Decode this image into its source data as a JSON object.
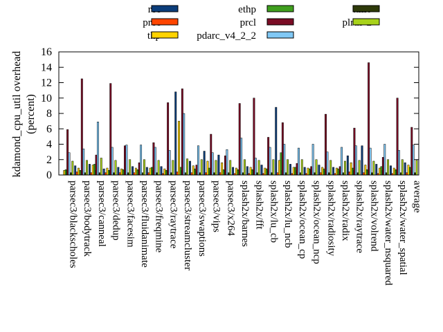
{
  "chart_data": {
    "type": "bar",
    "title": "",
    "xlabel": "",
    "ylabel": "kdamond_cpu_util overhead",
    "ylabel_unit": "(percent)",
    "ylim": [
      0,
      16
    ],
    "yticks": [
      0,
      2,
      4,
      6,
      8,
      10,
      12,
      14,
      16
    ],
    "grid": false,
    "legend_position": "top",
    "categories": [
      "parsec3/blackscholes",
      "parsec3/bodytrack",
      "parsec3/canneal",
      "parsec3/dedup",
      "parsec3/facesim",
      "parsec3/fluidanimate",
      "parsec3/freqmine",
      "parsec3/raytrace",
      "parsec3/streamcluster",
      "parsec3/swaptions",
      "parsec3/vips",
      "parsec3/x264",
      "splash2x/barnes",
      "splash2x/fft",
      "splash2x/lu_cb",
      "splash2x/lu_ncb",
      "splash2x/ocean_cp",
      "splash2x/ocean_ncp",
      "splash2x/radiosity",
      "splash2x/radix",
      "splash2x/raytrace",
      "splash2x/volrend",
      "splash2x/water_nsquared",
      "splash2x/water_spatial",
      "average"
    ],
    "series": [
      {
        "name": "rec",
        "color": "#0b3d7a",
        "values": [
          0.0,
          1.2,
          1.4,
          0.8,
          1.0,
          1.1,
          1.0,
          1.1,
          10.8,
          1.8,
          3.1,
          2.6,
          1.0,
          1.1,
          1.3,
          8.8,
          1.4,
          1.0,
          1.3,
          1.0,
          2.5,
          3.8,
          1.4,
          1.2,
          1.6
        ]
      },
      {
        "name": "prec",
        "color": "#ff4500",
        "values": [
          0.0,
          0.4,
          0.3,
          0.3,
          0.3,
          0.3,
          0.3,
          0.2,
          0.4,
          0.3,
          0.3,
          0.3,
          0.2,
          0.2,
          0.2,
          0.3,
          0.2,
          0.2,
          0.3,
          0.2,
          0.4,
          0.3,
          0.2,
          0.2,
          0.3
        ]
      },
      {
        "name": "thp",
        "color": "#ffd300",
        "values": [
          0.6,
          0.9,
          1.3,
          0.9,
          0.8,
          0.9,
          0.9,
          0.8,
          7.0,
          1.2,
          1.8,
          1.6,
          0.9,
          1.0,
          0.9,
          1.9,
          1.0,
          0.9,
          1.0,
          0.9,
          1.6,
          1.3,
          0.9,
          0.9,
          1.3
        ]
      },
      {
        "name": "ethp",
        "color": "#3f9f1e",
        "values": [
          0.7,
          0.6,
          1.4,
          0.6,
          0.7,
          0.7,
          1.0,
          0.6,
          1.0,
          0.8,
          0.9,
          0.7,
          0.7,
          0.7,
          0.8,
          2.9,
          1.0,
          0.8,
          0.8,
          0.8,
          0.9,
          0.7,
          1.1,
          0.7,
          1.0
        ]
      },
      {
        "name": "prcl",
        "color": "#7a0c25",
        "values": [
          5.9,
          12.5,
          2.6,
          11.9,
          3.8,
          1.6,
          4.2,
          9.4,
          11.2,
          1.3,
          5.3,
          2.5,
          9.3,
          10.0,
          4.9,
          6.8,
          1.5,
          1.1,
          7.9,
          1.1,
          6.1,
          14.6,
          2.3,
          10.0,
          6.2
        ]
      },
      {
        "name": "pdarc_v4_2_2",
        "color": "#80c8f5",
        "values": [
          2.9,
          3.4,
          6.9,
          3.6,
          3.9,
          3.9,
          3.6,
          3.2,
          8.0,
          3.8,
          2.9,
          3.3,
          4.8,
          2.2,
          3.6,
          4.0,
          3.5,
          4.0,
          3.0,
          3.6,
          3.8,
          3.5,
          4.0,
          3.2,
          3.9
        ]
      },
      {
        "name": "ttmo",
        "color": "#2e3a0a",
        "values": [
          0.3,
          0.3,
          0.3,
          0.3,
          0.3,
          0.3,
          0.3,
          0.3,
          0.3,
          0.3,
          0.3,
          0.3,
          0.3,
          0.3,
          0.3,
          0.3,
          0.3,
          0.3,
          0.3,
          0.3,
          0.3,
          0.3,
          0.3,
          0.3,
          0.3
        ]
      },
      {
        "name": "plrus-2",
        "color": "#a8d21a",
        "values": [
          1.8,
          1.9,
          2.2,
          1.9,
          2.0,
          2.0,
          1.9,
          1.9,
          2.1,
          2.0,
          1.9,
          1.9,
          2.0,
          1.9,
          2.0,
          2.0,
          2.0,
          2.0,
          1.9,
          1.8,
          1.9,
          1.8,
          2.0,
          2.0,
          1.9
        ]
      }
    ]
  }
}
